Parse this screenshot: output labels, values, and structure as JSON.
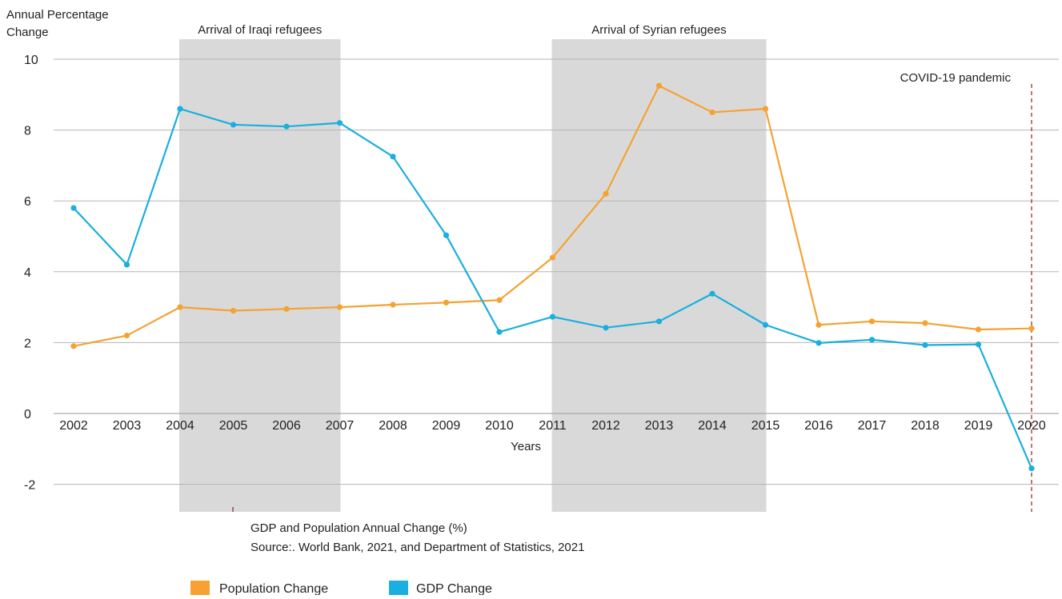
{
  "chart_data": {
    "type": "line",
    "title": "",
    "caption": "GDP and Population Annual Change (%)",
    "source": "Source:. World Bank, 2021, and Department of Statistics, 2021",
    "xlabel": "Years",
    "ylabel": "Annual Percentage Change",
    "ylabel_lines": [
      "Annual Percentage",
      "Change"
    ],
    "ylim": [
      -2.5,
      10
    ],
    "yticks": [
      -2,
      0,
      2,
      4,
      6,
      8,
      10
    ],
    "x": [
      2002,
      2003,
      2004,
      2005,
      2006,
      2007,
      2008,
      2009,
      2010,
      2011,
      2012,
      2013,
      2014,
      2015,
      2016,
      2017,
      2018,
      2019,
      2020
    ],
    "series": [
      {
        "name": "Population Change",
        "color": "#F5A233",
        "values": [
          1.9,
          2.2,
          3.0,
          2.9,
          2.95,
          3.0,
          3.07,
          3.13,
          3.2,
          4.4,
          6.2,
          9.25,
          8.5,
          8.6,
          2.5,
          2.6,
          2.55,
          2.37,
          2.4
        ]
      },
      {
        "name": "GDP Change",
        "color": "#1AAFDE",
        "values": [
          5.8,
          4.2,
          8.6,
          8.15,
          8.1,
          8.2,
          7.25,
          5.03,
          2.3,
          2.73,
          2.42,
          2.6,
          3.38,
          2.5,
          1.99,
          2.08,
          1.93,
          1.95,
          -1.55
        ]
      }
    ],
    "shaded_ranges": [
      {
        "label": "Arrival of Iraqi refugees",
        "from": 2004,
        "to": 2007,
        "color": "#DAD9DA"
      },
      {
        "label": "Arrival of Syrian refugees",
        "from": 2011,
        "to": 2015,
        "color": "#DAD9DA"
      }
    ],
    "markers": [
      {
        "label": "COVID-19 pandemic",
        "x": 2020,
        "color": "#A32A2A"
      }
    ],
    "grid": true,
    "legend_position": "bottom-left"
  }
}
